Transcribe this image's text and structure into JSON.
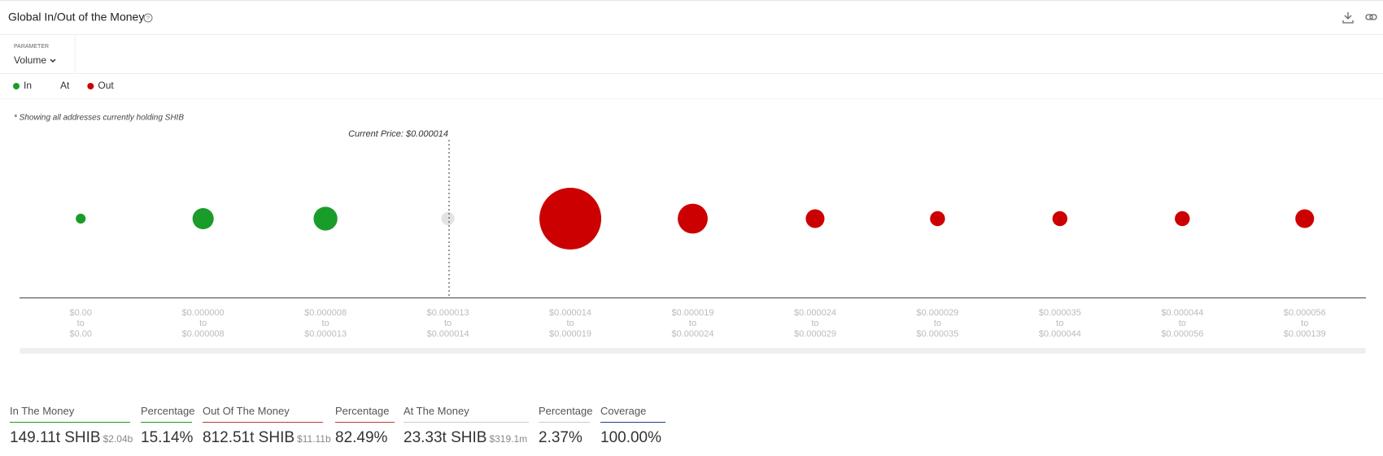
{
  "header": {
    "title": "Global In/Out of the Money"
  },
  "parameter": {
    "label": "PARAMETER",
    "value": "Volume"
  },
  "chart_data": {
    "type": "bubble",
    "note": "* Showing all addresses currently holding SHIB",
    "annotation": "Current Price: $0.000014",
    "legend": [
      {
        "name": "In",
        "color": "#1a9c2a"
      },
      {
        "name": "At"
      },
      {
        "name": "Out",
        "color": "#cc0000"
      }
    ],
    "range_connector": "to",
    "categories": [
      {
        "from": "$0.00",
        "to": "$0.00"
      },
      {
        "from": "$0.000000",
        "to": "$0.000008"
      },
      {
        "from": "$0.000008",
        "to": "$0.000013"
      },
      {
        "from": "$0.000013",
        "to": "$0.000014"
      },
      {
        "from": "$0.000014",
        "to": "$0.000019"
      },
      {
        "from": "$0.000019",
        "to": "$0.000024"
      },
      {
        "from": "$0.000024",
        "to": "$0.000029"
      },
      {
        "from": "$0.000029",
        "to": "$0.000035"
      },
      {
        "from": "$0.000035",
        "to": "$0.000044"
      },
      {
        "from": "$0.000044",
        "to": "$0.000056"
      },
      {
        "from": "$0.000056",
        "to": "$0.000139"
      }
    ],
    "sizes": [
      13,
      60,
      76,
      23,
      510,
      120,
      47,
      30,
      30,
      30,
      47
    ],
    "colors": [
      "#1a9c2a",
      "#1a9c2a",
      "#1a9c2a",
      "#e3e3e3",
      "#cc0000",
      "#cc0000",
      "#cc0000",
      "#cc0000",
      "#cc0000",
      "#cc0000",
      "#cc0000"
    ]
  },
  "summary": [
    {
      "label": "In The Money",
      "value": "149.11t SHIB",
      "sub": "$2.04b",
      "color": "#1a9c2a"
    },
    {
      "label": "Percentage",
      "value": "15.14%",
      "color": "#1a9c2a"
    },
    {
      "label": "Out Of The Money",
      "value": "812.51t SHIB",
      "sub": "$11.11b",
      "color": "#b5402e"
    },
    {
      "label": "Percentage",
      "value": "82.49%",
      "color": "#b5402e"
    },
    {
      "label": "At The Money",
      "value": "23.33t SHIB",
      "sub": "$319.1m",
      "color": "#cccccc"
    },
    {
      "label": "Percentage",
      "value": "2.37%",
      "color": "#cccccc"
    },
    {
      "label": "Coverage",
      "value": "100.00%",
      "color": "#1f3f8f"
    }
  ]
}
